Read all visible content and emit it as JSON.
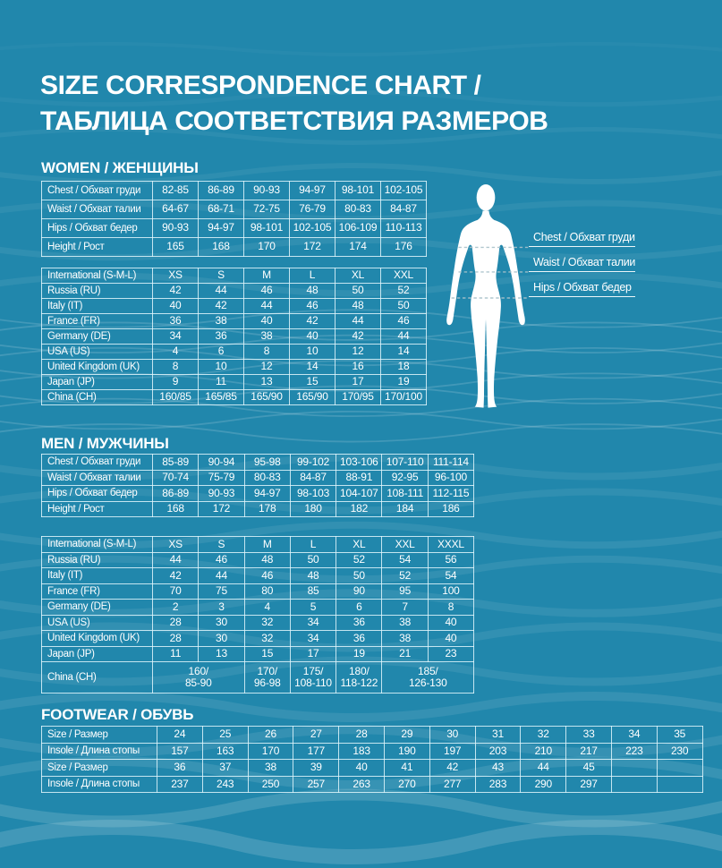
{
  "title": {
    "line1": "SIZE CORRESPONDENCE CHART /",
    "line2": "ТАБЛИЦА СООТВЕТСТВИЯ РАЗМЕРОВ"
  },
  "figure": {
    "labels": [
      "Chest / Обхват груди",
      "Waist / Обхват талии",
      "Hips / Обхват бедер"
    ]
  },
  "colors": {
    "background": "#2187AC",
    "text": "#FFFFFF",
    "table_border": "#DFF3FA"
  },
  "sections": {
    "women": {
      "heading": "WOMEN / ЖЕНЩИНЫ",
      "measurements": {
        "rows": [
          {
            "label": "Chest / Обхват груди",
            "values": [
              "82-85",
              "86-89",
              "90-93",
              "94-97",
              "98-101",
              "102-105"
            ]
          },
          {
            "label": "Waist / Обхват талии",
            "values": [
              "64-67",
              "68-71",
              "72-75",
              "76-79",
              "80-83",
              "84-87"
            ]
          },
          {
            "label": "Hips / Обхват бедер",
            "values": [
              "90-93",
              "94-97",
              "98-101",
              "102-105",
              "106-109",
              "110-113"
            ]
          },
          {
            "label": "Height / Рост",
            "values": [
              "165",
              "168",
              "170",
              "172",
              "174",
              "176"
            ]
          }
        ]
      },
      "sizes": {
        "rows": [
          {
            "label": "International (S-M-L)",
            "values": [
              "XS",
              "S",
              "M",
              "L",
              "XL",
              "XXL"
            ]
          },
          {
            "label": "Russia (RU)",
            "values": [
              "42",
              "44",
              "46",
              "48",
              "50",
              "52"
            ]
          },
          {
            "label": "Italy (IT)",
            "values": [
              "40",
              "42",
              "44",
              "46",
              "48",
              "50"
            ]
          },
          {
            "label": "France (FR)",
            "values": [
              "36",
              "38",
              "40",
              "42",
              "44",
              "46"
            ]
          },
          {
            "label": "Germany (DE)",
            "values": [
              "34",
              "36",
              "38",
              "40",
              "42",
              "44"
            ]
          },
          {
            "label": "USA (US)",
            "values": [
              "4",
              "6",
              "8",
              "10",
              "12",
              "14"
            ]
          },
          {
            "label": "United Kingdom (UK)",
            "values": [
              "8",
              "10",
              "12",
              "14",
              "16",
              "18"
            ]
          },
          {
            "label": "Japan (JP)",
            "values": [
              "9",
              "11",
              "13",
              "15",
              "17",
              "19"
            ]
          },
          {
            "label": "China (CH)",
            "values": [
              "160/85",
              "165/85",
              "165/90",
              "165/90",
              "170/95",
              "170/100"
            ]
          }
        ]
      }
    },
    "men": {
      "heading": "MEN / МУЖЧИНЫ",
      "measurements": {
        "rows": [
          {
            "label": "Chest / Обхват груди",
            "values": [
              "85-89",
              "90-94",
              "95-98",
              "99-102",
              "103-106",
              "107-110",
              "111-114"
            ]
          },
          {
            "label": "Waist / Обхват талии",
            "values": [
              "70-74",
              "75-79",
              "80-83",
              "84-87",
              "88-91",
              "92-95",
              "96-100"
            ]
          },
          {
            "label": "Hips / Обхват бедер",
            "values": [
              "86-89",
              "90-93",
              "94-97",
              "98-103",
              "104-107",
              "108-111",
              "112-115"
            ]
          },
          {
            "label": "Height / Рост",
            "values": [
              "168",
              "172",
              "178",
              "180",
              "182",
              "184",
              "186"
            ]
          }
        ]
      },
      "sizes": {
        "rows": [
          {
            "label": "International (S-M-L)",
            "values": [
              "XS",
              "S",
              "M",
              "L",
              "XL",
              "XXL",
              "XXXL"
            ]
          },
          {
            "label": "Russia (RU)",
            "values": [
              "44",
              "46",
              "48",
              "50",
              "52",
              "54",
              "56"
            ]
          },
          {
            "label": "Italy (IT)",
            "values": [
              "42",
              "44",
              "46",
              "48",
              "50",
              "52",
              "54"
            ]
          },
          {
            "label": "France (FR)",
            "values": [
              "70",
              "75",
              "80",
              "85",
              "90",
              "95",
              "100"
            ]
          },
          {
            "label": "Germany (DE)",
            "values": [
              "2",
              "3",
              "4",
              "5",
              "6",
              "7",
              "8"
            ]
          },
          {
            "label": "USA (US)",
            "values": [
              "28",
              "30",
              "32",
              "34",
              "36",
              "38",
              "40"
            ]
          },
          {
            "label": "United Kingdom (UK)",
            "values": [
              "28",
              "30",
              "32",
              "34",
              "36",
              "38",
              "40"
            ]
          },
          {
            "label": "Japan (JP)",
            "values": [
              "11",
              "13",
              "15",
              "17",
              "19",
              "21",
              "23"
            ]
          },
          {
            "label": "China (CH)",
            "values": [
              "160/\n85-90",
              "170/\n96-98",
              "175/\n108-110",
              "180/\n118-122",
              "185/\n126-130"
            ],
            "spans": [
              2,
              1,
              1,
              1,
              2
            ],
            "tall": true
          }
        ]
      }
    },
    "footwear": {
      "heading": "FOOTWEAR / ОБУВЬ",
      "table": {
        "rows": [
          {
            "label": "Size / Размер",
            "values": [
              "24",
              "25",
              "26",
              "27",
              "28",
              "29",
              "30",
              "31",
              "32",
              "33",
              "34",
              "35"
            ]
          },
          {
            "label": "Insole / Длина стопы",
            "values": [
              "157",
              "163",
              "170",
              "177",
              "183",
              "190",
              "197",
              "203",
              "210",
              "217",
              "223",
              "230"
            ]
          },
          {
            "label": "Size / Размер",
            "values": [
              "36",
              "37",
              "38",
              "39",
              "40",
              "41",
              "42",
              "43",
              "44",
              "45",
              "",
              ""
            ]
          },
          {
            "label": "Insole / Длина стопы",
            "values": [
              "237",
              "243",
              "250",
              "257",
              "263",
              "270",
              "277",
              "283",
              "290",
              "297",
              "",
              ""
            ]
          }
        ]
      }
    }
  }
}
